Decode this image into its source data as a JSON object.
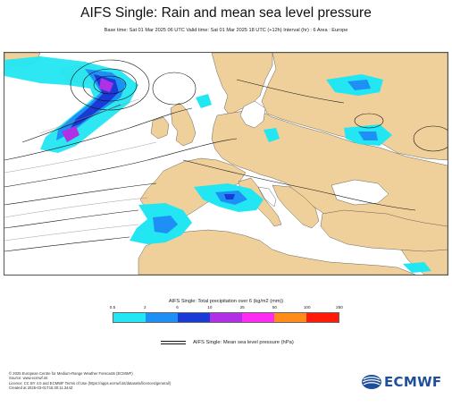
{
  "header": {
    "title": "AIFS Single: Rain and mean sea level pressure",
    "subtitle": "Base time: Sat 01 Mar 2025 06 UTC Valid time: Sat 01 Mar 2025 18 UTC (+12h) Interval (hr) : 6 Area : Europe"
  },
  "map": {
    "area": "Europe",
    "sea_color": "#ffffff",
    "land_color": "#efcf9a"
  },
  "precip_legend": {
    "title": "AIFS Single: Total precipitation over 6 (kg/m2 (mm))",
    "ticks": [
      "0.5",
      "2",
      "6",
      "10",
      "25",
      "50",
      "100",
      "250"
    ],
    "colors": [
      "#22e6f2",
      "#1e8ff4",
      "#1a3ad6",
      "#b030e6",
      "#ff2bf2",
      "#ff8b1b",
      "#ff1a0a"
    ]
  },
  "mslp_legend": {
    "label": "AIFS Single: Mean sea level pressure (hPa)"
  },
  "footer": {
    "lines": [
      "© 2025 European Centre for Medium-Range Weather Forecasts (ECMWF)",
      "Source: www.ecmwf.int",
      "Licence: CC BY 4.0 and ECMWF Terms of Use (https://apps.ecmwf.int/datasets/licences/general/)",
      "Created at 2025-03-01T15:30:11.344Z"
    ]
  },
  "logo": {
    "text": "ECMWF",
    "icon": "ecmwf-logo-icon"
  }
}
